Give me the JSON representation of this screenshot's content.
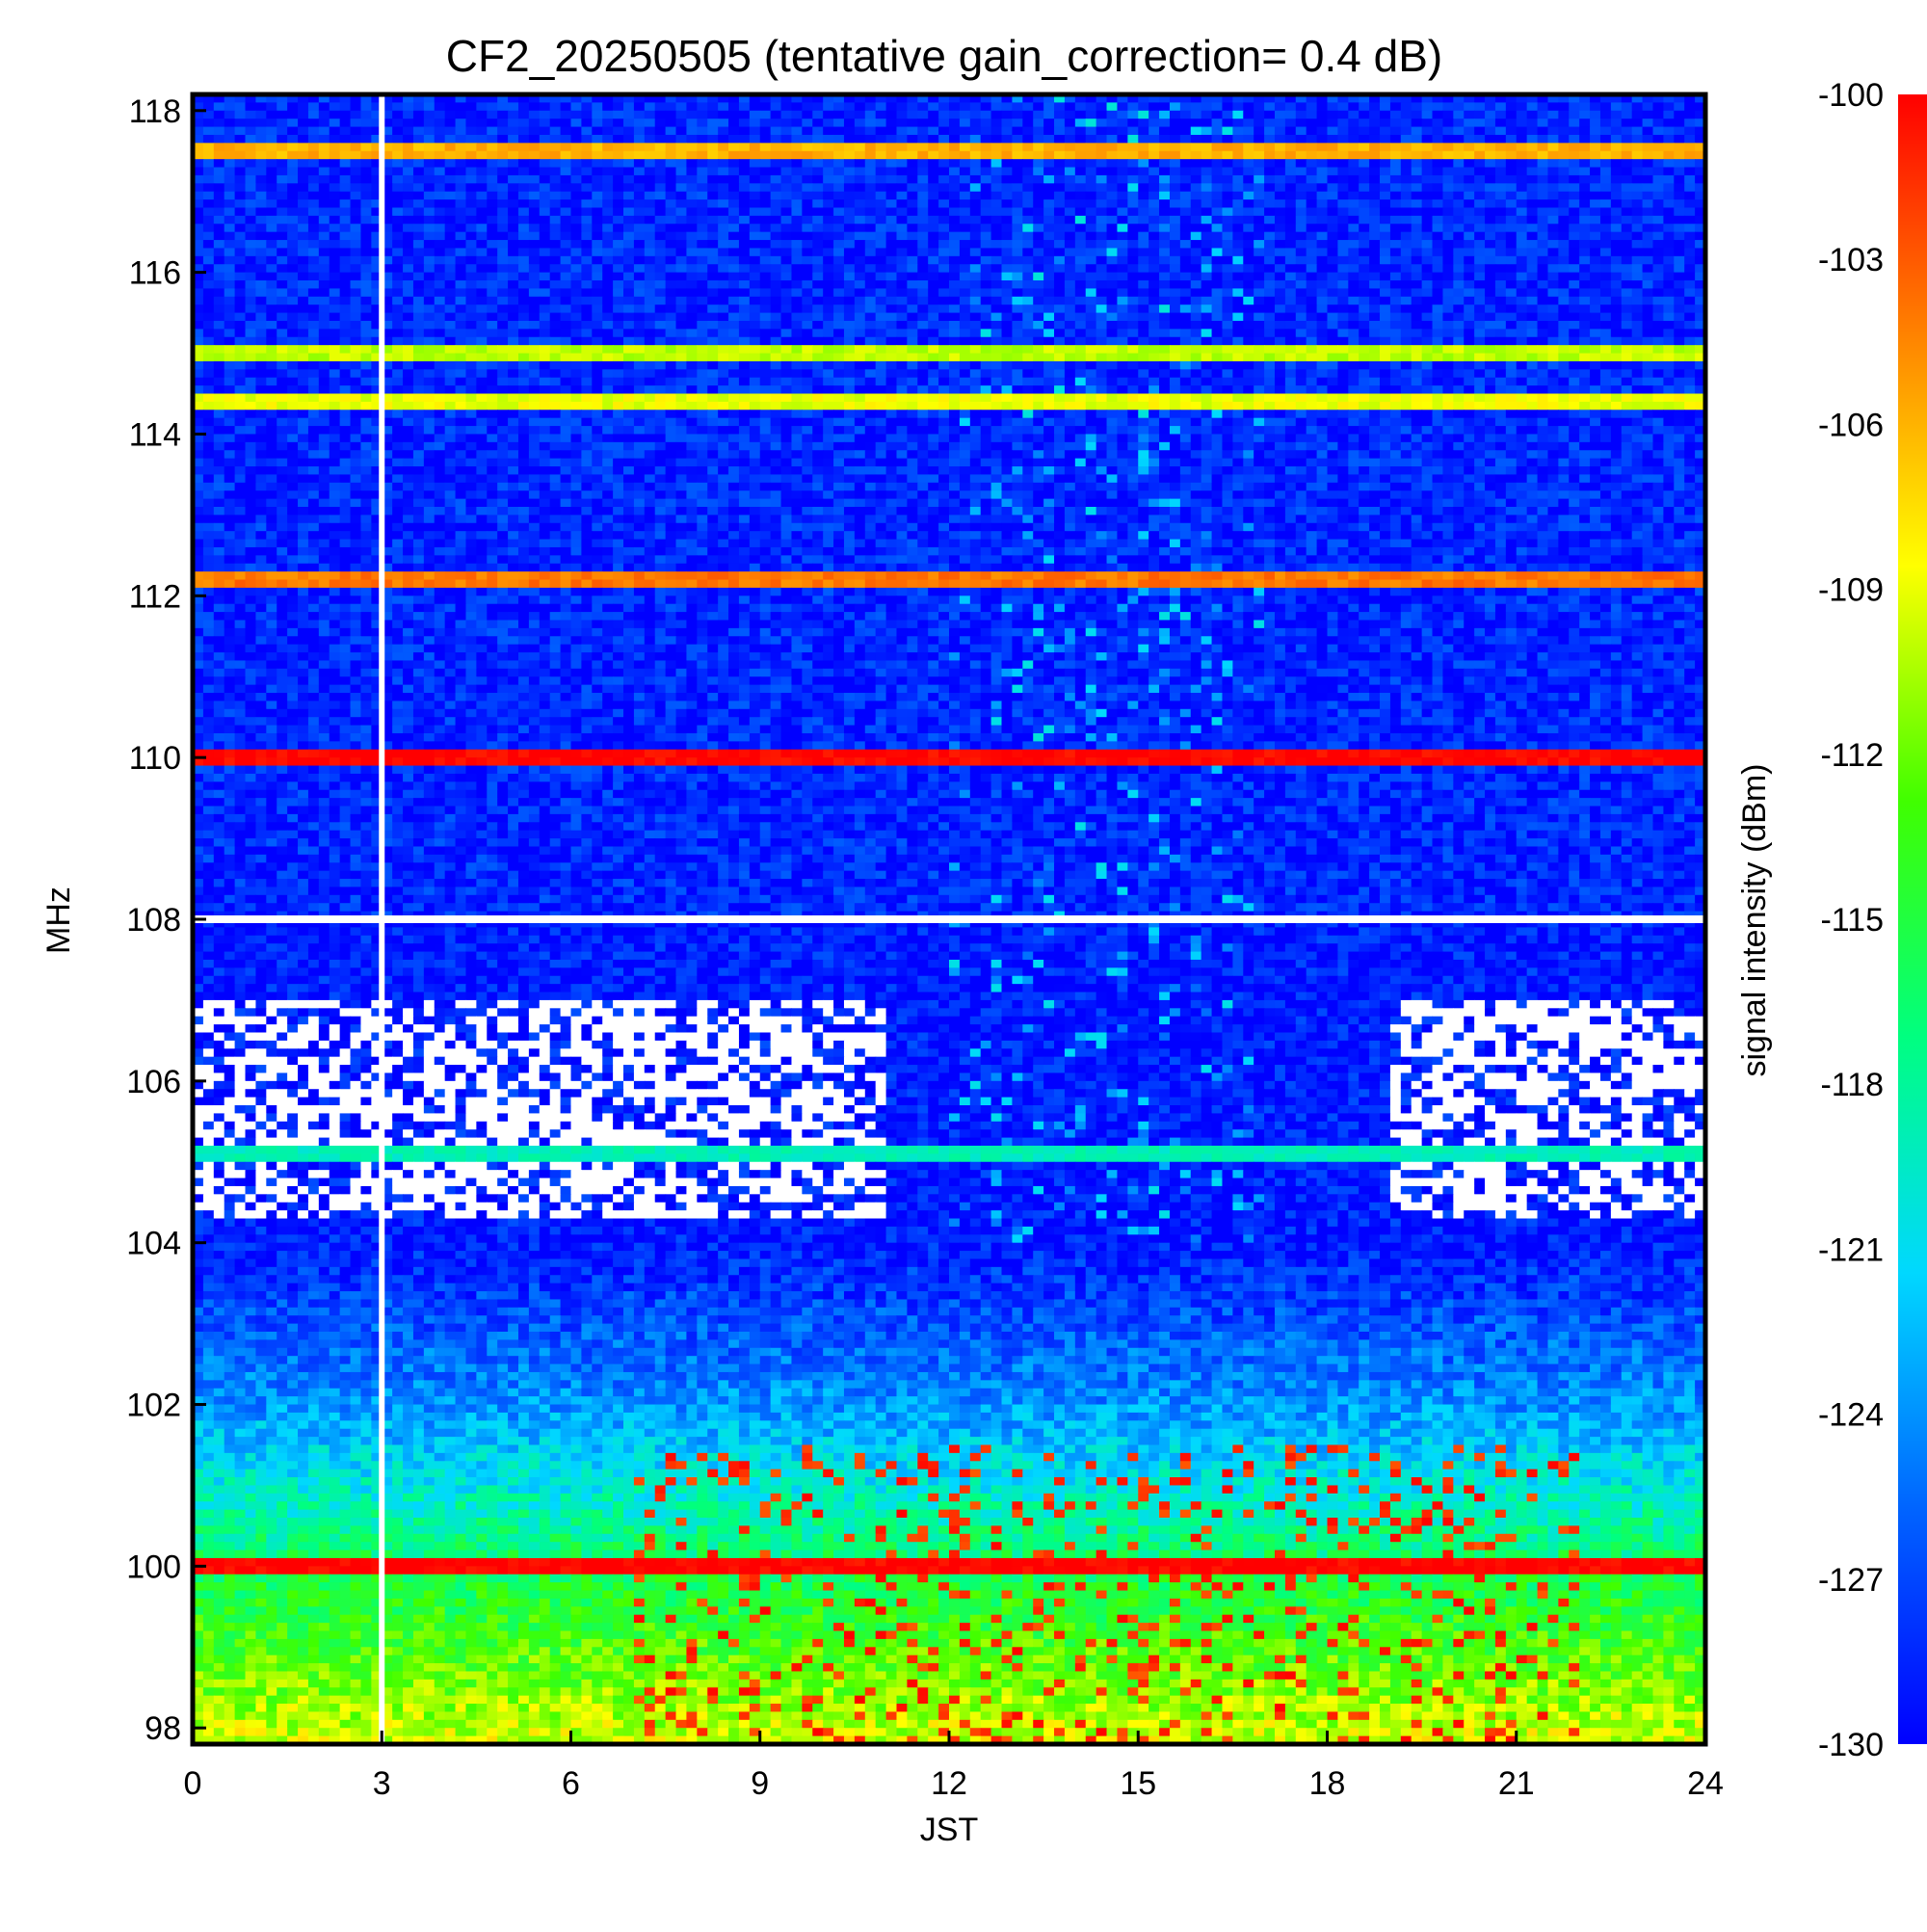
{
  "chart_data": {
    "type": "heatmap",
    "title": "CF2_20250505 (tentative gain_correction=  0.4 dB)",
    "xlabel": "JST",
    "ylabel": "MHz",
    "colorbar_label": "signal intensity (dBm)",
    "xlim": [
      0,
      24
    ],
    "ylim": [
      97.8,
      118.2
    ],
    "clim": [
      -130,
      -100
    ],
    "x_ticks": [
      "0",
      "3",
      "6",
      "9",
      "12",
      "15",
      "18",
      "21",
      "24"
    ],
    "y_ticks": [
      "98",
      "100",
      "102",
      "104",
      "106",
      "108",
      "110",
      "112",
      "114",
      "116",
      "118"
    ],
    "colorbar_ticks": [
      "-100",
      "-103",
      "-106",
      "-109",
      "-112",
      "-115",
      "-118",
      "-121",
      "-124",
      "-127",
      "-130"
    ],
    "colormap": [
      "#0000ff",
      "#0064ff",
      "#00d8ff",
      "#00ff80",
      "#40ff00",
      "#ffff00",
      "#ff8000",
      "#ff0000"
    ],
    "data_gap_jst": 3.0,
    "strong_bands": [
      {
        "freq_mhz": 117.5,
        "level_dbm": -106
      },
      {
        "freq_mhz": 115.0,
        "level_dbm": -110
      },
      {
        "freq_mhz": 114.4,
        "level_dbm": -109
      },
      {
        "freq_mhz": 112.2,
        "level_dbm": -104
      },
      {
        "freq_mhz": 110.0,
        "level_dbm": -100
      },
      {
        "freq_mhz": 105.1,
        "level_dbm": -119
      },
      {
        "freq_mhz": 100.0,
        "level_dbm": -100
      }
    ]
  }
}
